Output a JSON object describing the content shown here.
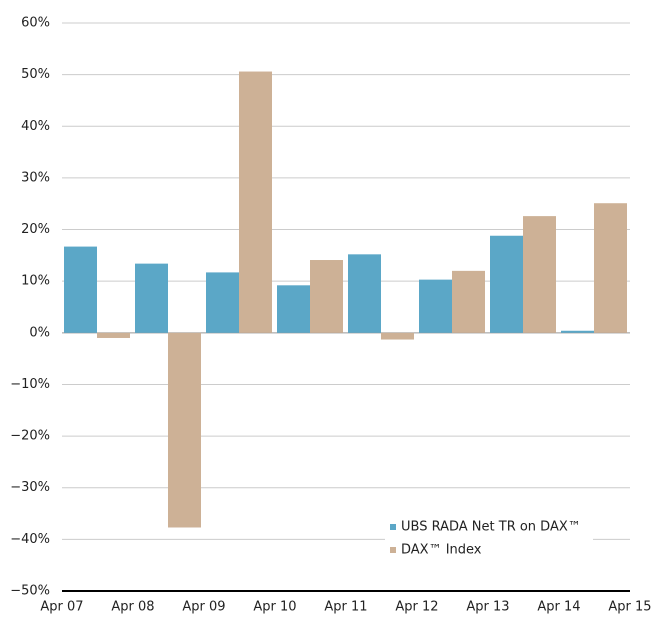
{
  "chart_data": {
    "type": "bar",
    "xticks": [
      "Apr 07",
      "Apr 08",
      "Apr 09",
      "Apr 10",
      "Apr 11",
      "Apr 12",
      "Apr 13",
      "Apr 14",
      "Apr 15"
    ],
    "series": [
      {
        "name": "UBS RADA Net TR on DAX™",
        "color": "#5ba7c7",
        "values": [
          16.7,
          13.4,
          11.7,
          9.2,
          15.2,
          10.3,
          18.8,
          0.4
        ]
      },
      {
        "name": "DAX™ Index",
        "color": "#cdb196",
        "values": [
          -1.0,
          -37.7,
          50.6,
          14.1,
          -1.3,
          12.0,
          22.6,
          25.1
        ]
      }
    ],
    "ylim": [
      -50,
      60
    ],
    "yticks": [
      {
        "value": -50,
        "label": "−50%"
      },
      {
        "value": -40,
        "label": "−40%"
      },
      {
        "value": -30,
        "label": "−30%"
      },
      {
        "value": -20,
        "label": "−20%"
      },
      {
        "value": -10,
        "label": "−10%"
      },
      {
        "value": 0,
        "label": "0%"
      },
      {
        "value": 10,
        "label": "10%"
      },
      {
        "value": 20,
        "label": "20%"
      },
      {
        "value": 30,
        "label": "30%"
      },
      {
        "value": 40,
        "label": "40%"
      },
      {
        "value": 50,
        "label": "50%"
      },
      {
        "value": 60,
        "label": "60%"
      }
    ],
    "grid": true,
    "legend": "lower right"
  }
}
